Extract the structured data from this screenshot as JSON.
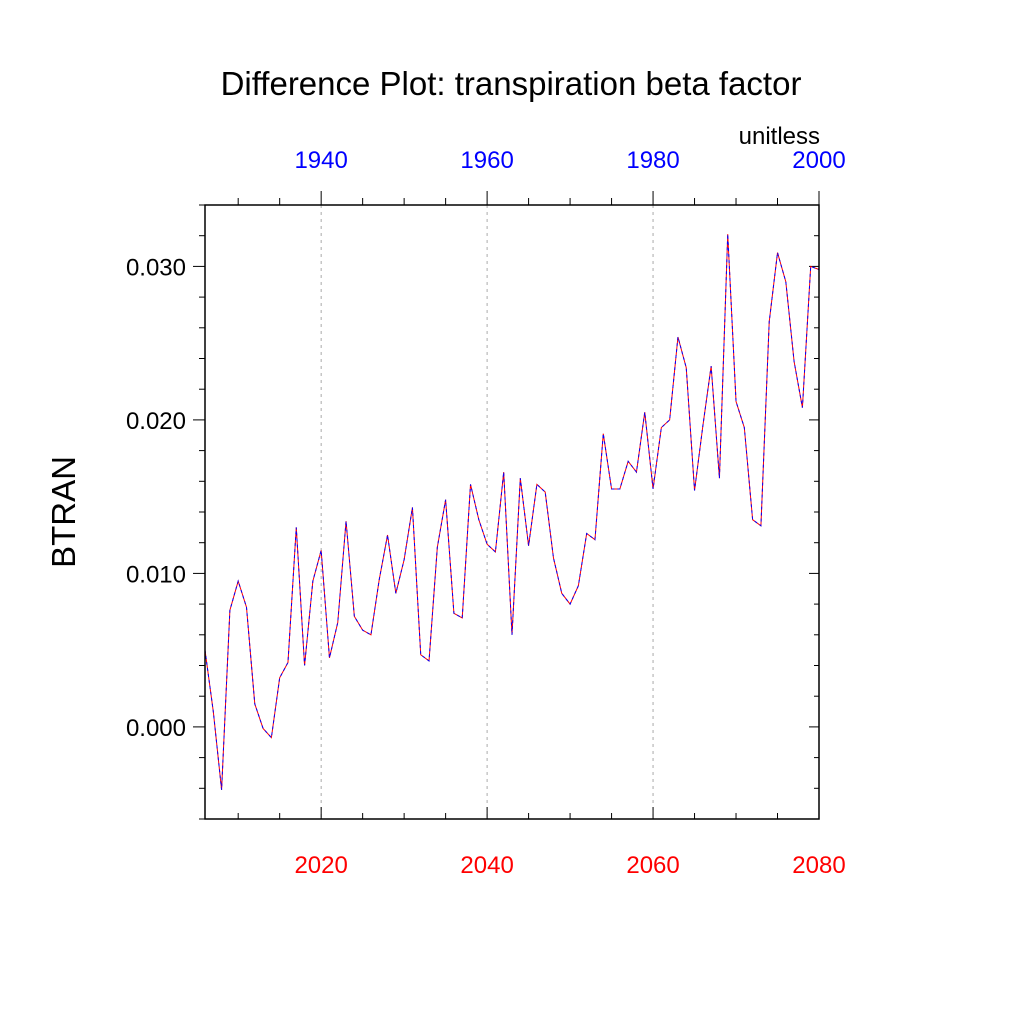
{
  "chart_data": {
    "type": "line",
    "title": "Difference Plot: transpiration beta factor",
    "ylabel": "BTRAN",
    "units_label": "unitless",
    "colors": {
      "bottom_axis": "#ff0000",
      "top_axis": "#0000ff",
      "line_a": "#ff0000",
      "line_b": "#0000ff",
      "text": "#000000"
    },
    "x_bottom": {
      "min": 2006,
      "max": 2080,
      "ticks": [
        2020,
        2040,
        2060,
        2080
      ],
      "tick_labels": [
        "2020",
        "2040",
        "2060",
        "2080"
      ]
    },
    "x_top": {
      "min": 1926,
      "max": 2000,
      "ticks": [
        1940,
        1960,
        1980,
        2000
      ],
      "tick_labels": [
        "1940",
        "1960",
        "1980",
        "2000"
      ]
    },
    "ylim": [
      -0.006,
      0.034
    ],
    "y_ticks": [
      0.0,
      0.01,
      0.02,
      0.03
    ],
    "y_tick_labels": [
      "0.000",
      "0.010",
      "0.020",
      "0.030"
    ],
    "grid": "vertical dashed at labelled bottom-axis ticks",
    "series": [
      {
        "x": [
          2006,
          2007,
          2008,
          2009,
          2010,
          2011,
          2012,
          2013,
          2014,
          2015,
          2016,
          2017,
          2018,
          2019,
          2020,
          2021,
          2022,
          2023,
          2024,
          2025,
          2026,
          2027,
          2028,
          2029,
          2030,
          2031,
          2032,
          2033,
          2034,
          2035,
          2036,
          2037,
          2038,
          2039,
          2040,
          2041,
          2042,
          2043,
          2044,
          2045,
          2046,
          2047,
          2048,
          2049,
          2050,
          2051,
          2052,
          2053,
          2054,
          2055,
          2056,
          2057,
          2058,
          2059,
          2060,
          2061,
          2062,
          2063,
          2064,
          2065,
          2066,
          2067,
          2068,
          2069,
          2070,
          2071,
          2072,
          2073,
          2074,
          2075,
          2076,
          2077,
          2078,
          2079,
          2080
        ],
        "values": [
          0.005,
          0.001,
          -0.0041,
          0.0076,
          0.0095,
          0.0078,
          0.0015,
          -0.0001,
          -0.0007,
          0.0032,
          0.0042,
          0.013,
          0.004,
          0.0095,
          0.0115,
          0.0045,
          0.0068,
          0.0134,
          0.0072,
          0.0063,
          0.006,
          0.0096,
          0.0125,
          0.0087,
          0.0109,
          0.0143,
          0.0047,
          0.0043,
          0.0117,
          0.0148,
          0.0074,
          0.0071,
          0.0158,
          0.0135,
          0.0119,
          0.0114,
          0.0166,
          0.006,
          0.0162,
          0.0118,
          0.0158,
          0.0153,
          0.011,
          0.0087,
          0.008,
          0.0092,
          0.0126,
          0.0122,
          0.0191,
          0.0155,
          0.0155,
          0.0173,
          0.0166,
          0.0205,
          0.0155,
          0.0195,
          0.02,
          0.0254,
          0.0234,
          0.0154,
          0.0196,
          0.0235,
          0.0162,
          0.0321,
          0.0212,
          0.0195,
          0.0135,
          0.0131,
          0.0264,
          0.0309,
          0.029,
          0.0238,
          0.0208,
          0.03,
          0.0298
        ]
      }
    ]
  }
}
